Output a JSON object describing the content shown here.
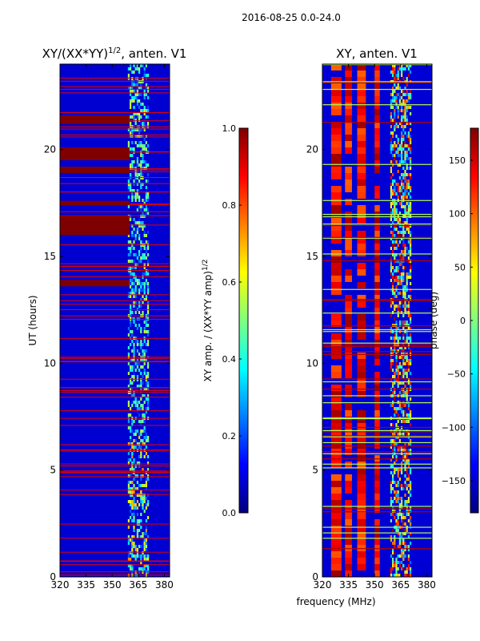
{
  "figure_title": "2016-08-25 0.0-24.0",
  "colors": {
    "jet": [
      "#00007f",
      "#0000ff",
      "#007fff",
      "#00ffff",
      "#7fff7f",
      "#ffff00",
      "#ff7f00",
      "#ff0000",
      "#7f0000"
    ]
  },
  "chart_data": [
    {
      "type": "heatmap",
      "title_main": "XY/(XX*YY)",
      "title_sup": "1/2",
      "title_rest": ", anten. V1",
      "xlabel": "",
      "ylabel": "UT (hours)",
      "xlim": [
        320,
        383
      ],
      "ylim": [
        0,
        24
      ],
      "xticks": [
        320,
        335,
        350,
        365,
        380
      ],
      "yticks": [
        0,
        5,
        10,
        15,
        20
      ],
      "colorbar": {
        "label_main": "XY amp. / (XX*YY amp)",
        "label_sup": "1/2",
        "range": [
          0.0,
          1.0
        ],
        "ticks": [
          "0.0",
          "0.2",
          "0.4",
          "0.6",
          "0.8",
          "1.0"
        ],
        "tick_values": [
          0.0,
          0.2,
          0.4,
          0.6,
          0.8,
          1.0
        ]
      },
      "saturated_bands_hours": [
        [
          16.0,
          16.9
        ],
        [
          18.9,
          19.2
        ],
        [
          19.5,
          20.1
        ],
        [
          21.2,
          21.6
        ],
        [
          13.6,
          13.9
        ],
        [
          17.4,
          17.6
        ]
      ],
      "background_value": 0.05,
      "active_band_mhz": [
        359,
        383
      ]
    },
    {
      "type": "heatmap",
      "title_main": "XY, anten. V1",
      "xlabel": "frequency (MHz)",
      "ylabel": "",
      "xlim": [
        320,
        383
      ],
      "ylim": [
        0,
        24
      ],
      "xticks": [
        320,
        335,
        350,
        365,
        380
      ],
      "yticks": [
        0,
        5,
        10,
        15,
        20
      ],
      "colorbar": {
        "label_main": "phase (deg)",
        "range": [
          -180,
          180
        ],
        "ticks": [
          "150",
          "100",
          "50",
          "0",
          "−50",
          "−100",
          "−150"
        ],
        "tick_values": [
          150,
          100,
          50,
          0,
          -50,
          -100,
          -150
        ]
      },
      "hot_columns_mhz": [
        [
          325,
          331
        ],
        [
          333,
          337
        ],
        [
          340,
          345
        ],
        [
          350,
          353
        ]
      ],
      "background_value": -150,
      "active_band_mhz": [
        359,
        383
      ]
    }
  ]
}
